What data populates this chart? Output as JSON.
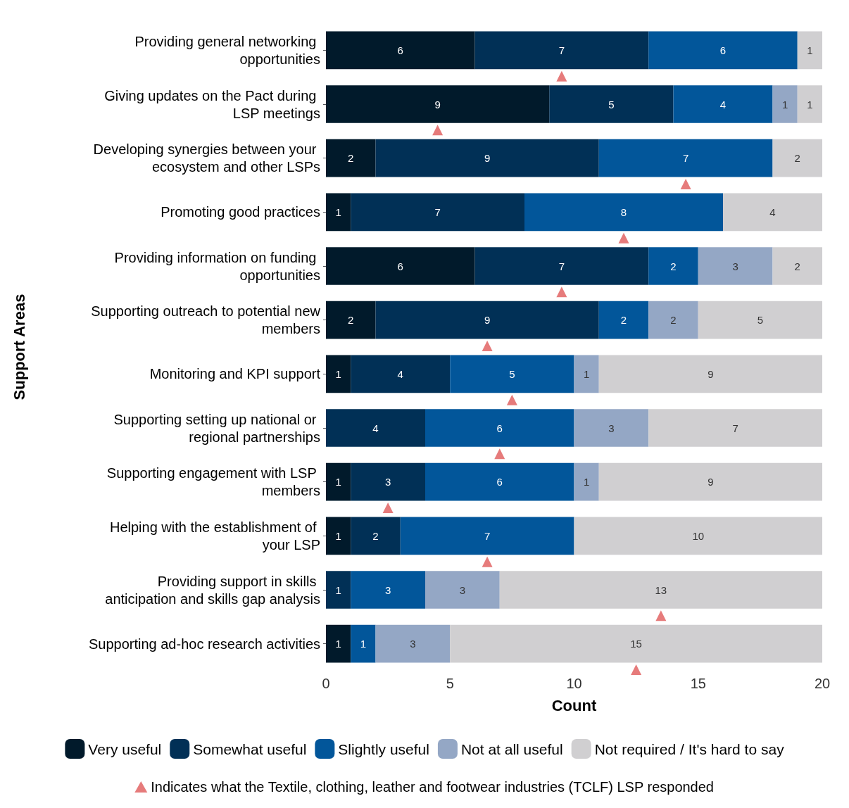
{
  "chart_data": {
    "type": "bar",
    "orientation": "horizontal",
    "stacked": true,
    "grid": false,
    "legend": "bottom",
    "xlabel": "Count",
    "ylabel": "Support Areas",
    "xlim": [
      0,
      20
    ],
    "xticks": [
      0,
      5,
      10,
      15,
      20
    ],
    "categories": [
      "Providing general networking opportunities",
      "Giving updates on the Pact during LSP meetings",
      "Developing synergies between your ecosystem and other LSPs",
      "Promoting good practices",
      "Providing information on funding opportunities",
      "Supporting outreach to potential new members",
      "Monitoring and KPI support",
      "Supporting setting up national or regional partnerships",
      "Supporting engagement with LSP members",
      "Helping with the establishment of your LSP",
      "Providing support in skills anticipation and skills gap analysis",
      "Supporting ad-hoc research activities"
    ],
    "series": [
      {
        "name": "Very useful",
        "color": "#011a2b",
        "values": [
          6,
          9,
          2,
          1,
          6,
          2,
          1,
          null,
          1,
          1,
          null,
          1
        ],
        "value_labels": [
          "6",
          "9",
          "2",
          "1",
          "6",
          "2",
          "1",
          null,
          "1",
          "1",
          null,
          "1"
        ]
      },
      {
        "name": "Somewhat useful",
        "color": "#013056",
        "values": [
          7,
          5,
          9,
          7,
          7,
          9,
          4,
          4,
          3,
          2,
          1,
          null
        ],
        "value_labels": [
          "7",
          "5",
          "9",
          "7",
          "7",
          "9",
          "4",
          "4",
          "3",
          "2",
          "1",
          null
        ]
      },
      {
        "name": "Slightly useful",
        "color": "#02569a",
        "values": [
          6,
          4,
          7,
          8,
          2,
          2,
          5,
          6,
          6,
          7,
          3,
          1
        ],
        "value_labels": [
          "6",
          "4",
          "7",
          "8",
          "2",
          "2",
          "5",
          "6",
          "6",
          "7",
          "3",
          "1"
        ]
      },
      {
        "name": "Not at all useful",
        "color": "#94a7c5",
        "values": [
          null,
          1,
          null,
          null,
          3,
          2,
          1,
          3,
          1,
          null,
          3,
          3
        ],
        "value_labels": [
          null,
          "1",
          null,
          null,
          "3",
          "2",
          "1",
          "3",
          "1",
          null,
          "3",
          "3"
        ]
      },
      {
        "name": "Not required / It's hard to say",
        "color": "#d0cfd1",
        "values": [
          1,
          1,
          2,
          4,
          2,
          5,
          9,
          7,
          9,
          10,
          13,
          15
        ],
        "value_labels": [
          "1",
          "1",
          "2",
          "4",
          "2",
          "5",
          "9",
          "7",
          "9",
          "10",
          "13",
          "15"
        ]
      },
      {
        "name": "Indicates what the Textile, clothing, leather and footwear industries (TCLF) LSP responded",
        "type": "scatter",
        "marker": "triangle",
        "color": "#e05a5a",
        "values": [
          9.5,
          4.5,
          14.5,
          12,
          9.5,
          6.5,
          7.5,
          7,
          2.5,
          6.5,
          13.5,
          12.5
        ]
      }
    ]
  }
}
